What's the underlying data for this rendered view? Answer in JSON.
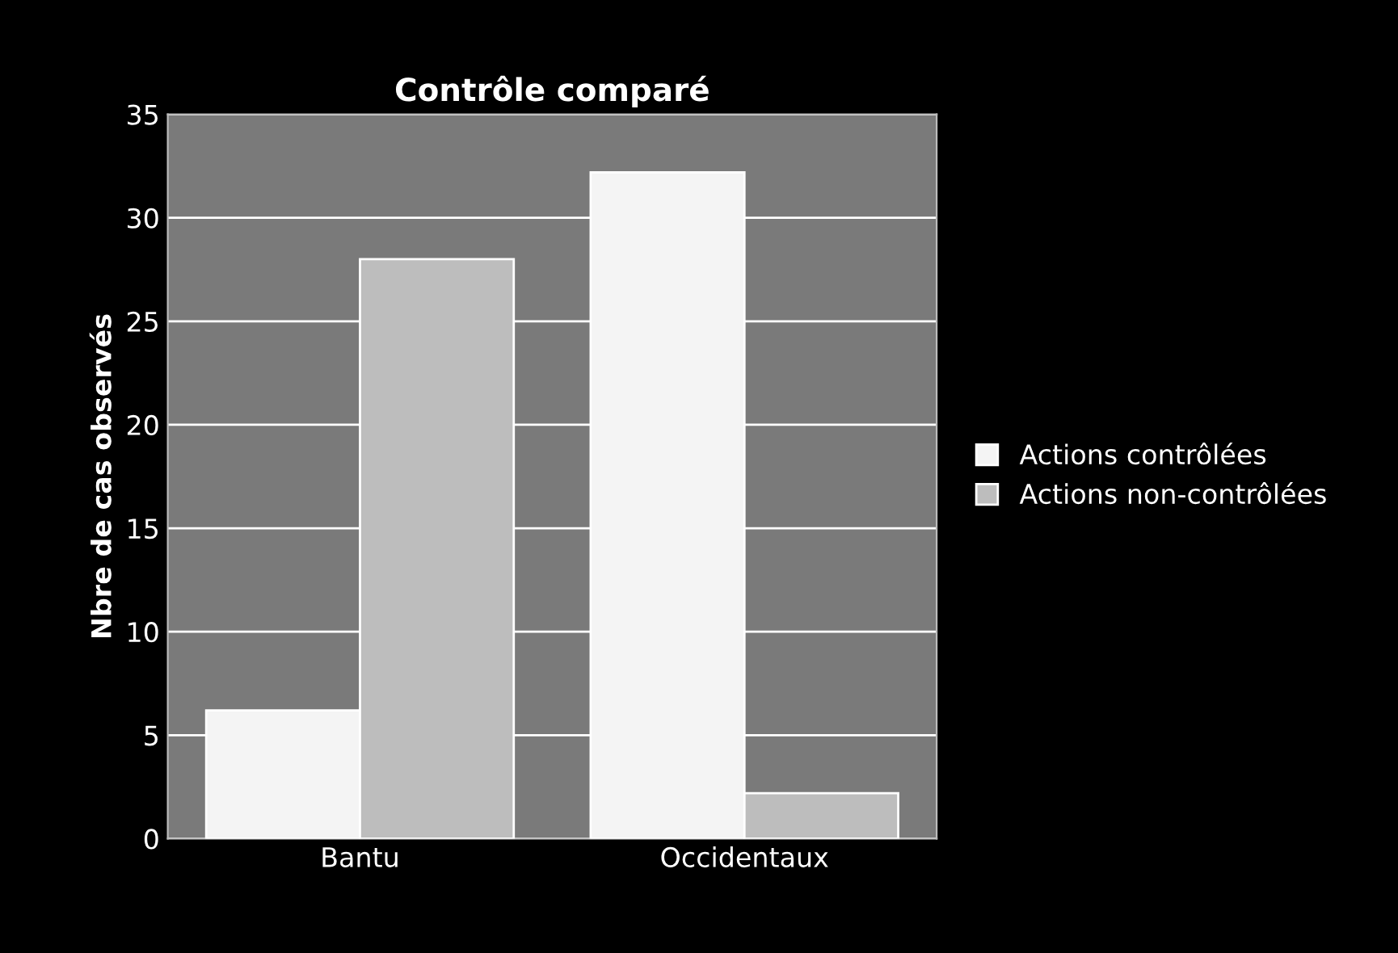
{
  "chart_data": {
    "type": "bar",
    "title": "Contrôle comparé",
    "ylabel": "Nbre de cas observés",
    "categories": [
      "Bantu",
      "Occidentaux"
    ],
    "series": [
      {
        "name": "Actions contrôlées",
        "color": "#f4f4f4",
        "values": [
          6.2,
          32.2
        ]
      },
      {
        "name": "Actions non-contrôlées",
        "color": "#bdbdbd",
        "values": [
          28,
          2.2
        ]
      }
    ],
    "ylim": [
      0,
      35
    ],
    "yticks": [
      0,
      5,
      10,
      15,
      20,
      25,
      30,
      35
    ],
    "grid": "y",
    "legend": "right"
  }
}
